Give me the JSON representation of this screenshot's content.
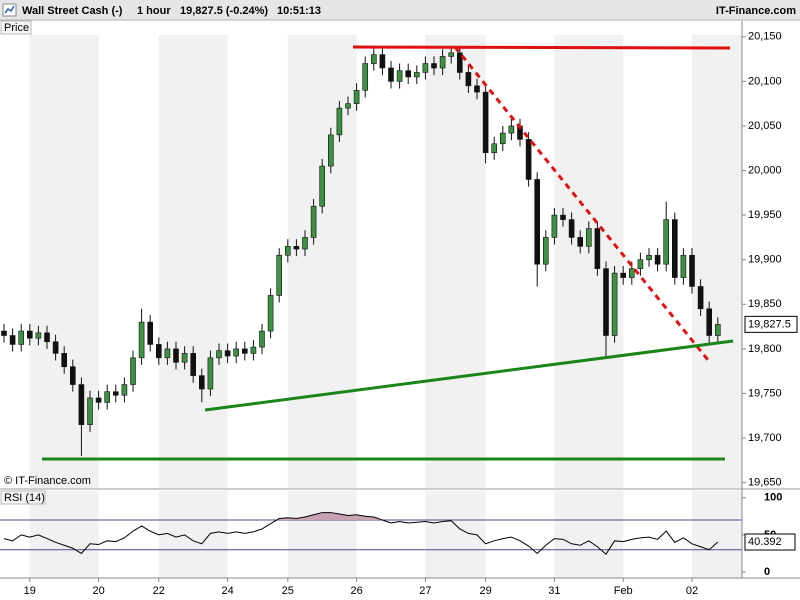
{
  "chart_data": [
    {
      "type": "candlestick",
      "title": "Wall Street Cash (-)",
      "interval": "1 hour",
      "quote": "19,827.5 (-0.24%)",
      "time": "10:51:13",
      "source": "IT-Finance.com",
      "panel_label": "Price",
      "copyright": "© IT-Finance.com",
      "categories": [
        null,
        null,
        null,
        "19",
        null,
        null,
        null,
        null,
        null,
        null,
        null,
        "20",
        null,
        null,
        null,
        null,
        null,
        null,
        "22",
        null,
        null,
        null,
        null,
        null,
        null,
        null,
        "24",
        null,
        null,
        null,
        null,
        null,
        null,
        "25",
        null,
        null,
        null,
        null,
        null,
        null,
        null,
        "26",
        null,
        null,
        null,
        null,
        null,
        null,
        null,
        "27",
        null,
        null,
        null,
        null,
        null,
        null,
        "29",
        null,
        null,
        null,
        null,
        null,
        null,
        null,
        "31",
        null,
        null,
        null,
        null,
        null,
        null,
        null,
        "Feb",
        null,
        null,
        null,
        null,
        null,
        null,
        null,
        "02",
        null,
        null,
        null
      ],
      "open": [
        19820,
        19815,
        19805,
        19820,
        19812,
        19818,
        19808,
        19795,
        19780,
        19760,
        19715,
        19745,
        19740,
        19752,
        19748,
        19760,
        19790,
        19830,
        19805,
        19790,
        19800,
        19785,
        19795,
        19770,
        19755,
        19790,
        19798,
        19792,
        19800,
        19795,
        19802,
        19820,
        19860,
        19905,
        19915,
        19912,
        19925,
        19960,
        20005,
        20040,
        20070,
        20075,
        20090,
        20120,
        20130,
        20115,
        20100,
        20112,
        20105,
        20110,
        20120,
        20115,
        20128,
        20132,
        20110,
        20095,
        20088,
        20020,
        20030,
        20042,
        20050,
        20035,
        19990,
        19895,
        19925,
        19950,
        19945,
        19925,
        19915,
        19935,
        19890,
        19815,
        19885,
        19880,
        19890,
        19900,
        19905,
        19895,
        19945,
        19880,
        19905,
        19870,
        19845,
        19815
      ],
      "high": [
        19828,
        19823,
        19828,
        19828,
        19826,
        19826,
        19816,
        19803,
        19788,
        19768,
        19753,
        19753,
        19760,
        19760,
        19768,
        19798,
        19845,
        19838,
        19813,
        19808,
        19808,
        19803,
        19803,
        19778,
        19798,
        19806,
        19806,
        19808,
        19808,
        19810,
        19828,
        19868,
        19913,
        19923,
        19923,
        19933,
        19968,
        20013,
        20048,
        20078,
        20083,
        20098,
        20128,
        20138,
        20138,
        20123,
        20120,
        20120,
        20118,
        20128,
        20128,
        20136,
        20140,
        20140,
        20118,
        20103,
        20096,
        20038,
        20050,
        20058,
        20058,
        20043,
        19998,
        19933,
        19958,
        19958,
        19953,
        19933,
        19943,
        19943,
        19898,
        19893,
        19893,
        19898,
        19908,
        19913,
        19913,
        19965,
        19953,
        19913,
        19913,
        19878,
        19853,
        19835.5
      ],
      "low": [
        19807,
        19797,
        19797,
        19804,
        19804,
        19800,
        19787,
        19772,
        19752,
        19680,
        19707,
        19732,
        19732,
        19740,
        19740,
        19752,
        19782,
        19797,
        19782,
        19782,
        19777,
        19777,
        19762,
        19740,
        19747,
        19782,
        19784,
        19784,
        19787,
        19787,
        19794,
        19812,
        19852,
        19897,
        19904,
        19904,
        19917,
        19952,
        19997,
        20032,
        20062,
        20067,
        20082,
        20112,
        20107,
        20092,
        20092,
        20097,
        20097,
        20102,
        20107,
        20107,
        20120,
        20102,
        20087,
        20080,
        20008,
        20012,
        20022,
        20034,
        20027,
        19982,
        19870,
        19887,
        19917,
        19937,
        19917,
        19907,
        19907,
        19882,
        19790,
        19807,
        19872,
        19872,
        19882,
        19892,
        19887,
        19887,
        19872,
        19872,
        19862,
        19837,
        19807,
        19807
      ],
      "close": [
        19815,
        19805,
        19820,
        19812,
        19818,
        19808,
        19795,
        19780,
        19760,
        19715,
        19745,
        19740,
        19752,
        19748,
        19760,
        19790,
        19830,
        19805,
        19790,
        19800,
        19785,
        19795,
        19770,
        19755,
        19790,
        19798,
        19792,
        19800,
        19795,
        19802,
        19820,
        19860,
        19905,
        19915,
        19912,
        19925,
        19960,
        20005,
        20040,
        20070,
        20075,
        20090,
        20120,
        20130,
        20115,
        20100,
        20112,
        20105,
        20110,
        20120,
        20115,
        20128,
        20132,
        20110,
        20095,
        20088,
        20020,
        20030,
        20042,
        20050,
        20035,
        19990,
        19895,
        19925,
        19950,
        19945,
        19925,
        19915,
        19935,
        19890,
        19815,
        19885,
        19880,
        19890,
        19900,
        19905,
        19895,
        19945,
        19880,
        19905,
        19870,
        19845,
        19815,
        19827.5
      ],
      "up_color": "#3d9140",
      "down_color": "#111111",
      "ylim": [
        19644,
        20152
      ],
      "yticks": [
        {
          "value": 19650,
          "label": "19,650"
        },
        {
          "value": 19700,
          "label": "19,700"
        },
        {
          "value": 19750,
          "label": "19,750"
        },
        {
          "value": 19800,
          "label": "19,800"
        },
        {
          "value": 19850,
          "label": "19,850"
        },
        {
          "value": 19900,
          "label": "19,900"
        },
        {
          "value": 19950,
          "label": "19,950"
        },
        {
          "value": 20000,
          "label": "20,000"
        },
        {
          "value": 20050,
          "label": "20,050"
        },
        {
          "value": 20100,
          "label": "20,100"
        },
        {
          "value": 20150,
          "label": "20,150"
        }
      ],
      "last_price": {
        "value": 19827.5,
        "label": "19,827.5"
      }
    },
    {
      "type": "line",
      "title": "RSI (14)",
      "values": [
        45,
        42,
        50,
        47,
        50,
        45,
        40,
        36,
        32,
        25,
        38,
        37,
        42,
        41,
        46,
        55,
        62,
        55,
        50,
        52,
        47,
        50,
        42,
        38,
        52,
        54,
        52,
        54,
        52,
        54,
        58,
        65,
        72,
        73,
        72,
        74,
        77,
        80,
        80,
        78,
        76,
        77,
        75,
        74,
        70,
        66,
        68,
        66,
        67,
        68,
        66,
        68,
        69,
        58,
        52,
        50,
        38,
        42,
        45,
        47,
        42,
        35,
        25,
        36,
        45,
        44,
        38,
        36,
        42,
        34,
        24,
        42,
        41,
        44,
        46,
        47,
        44,
        55,
        40,
        46,
        38,
        34,
        30,
        40.392
      ],
      "color": "#000000",
      "fill_color": "#c9a3b4",
      "level_color": "#4a4a8a",
      "ylim": [
        -8,
        109
      ],
      "yticks": [
        0,
        50,
        100
      ],
      "levels": [
        30,
        70
      ],
      "last_value": 40.392
    }
  ]
}
